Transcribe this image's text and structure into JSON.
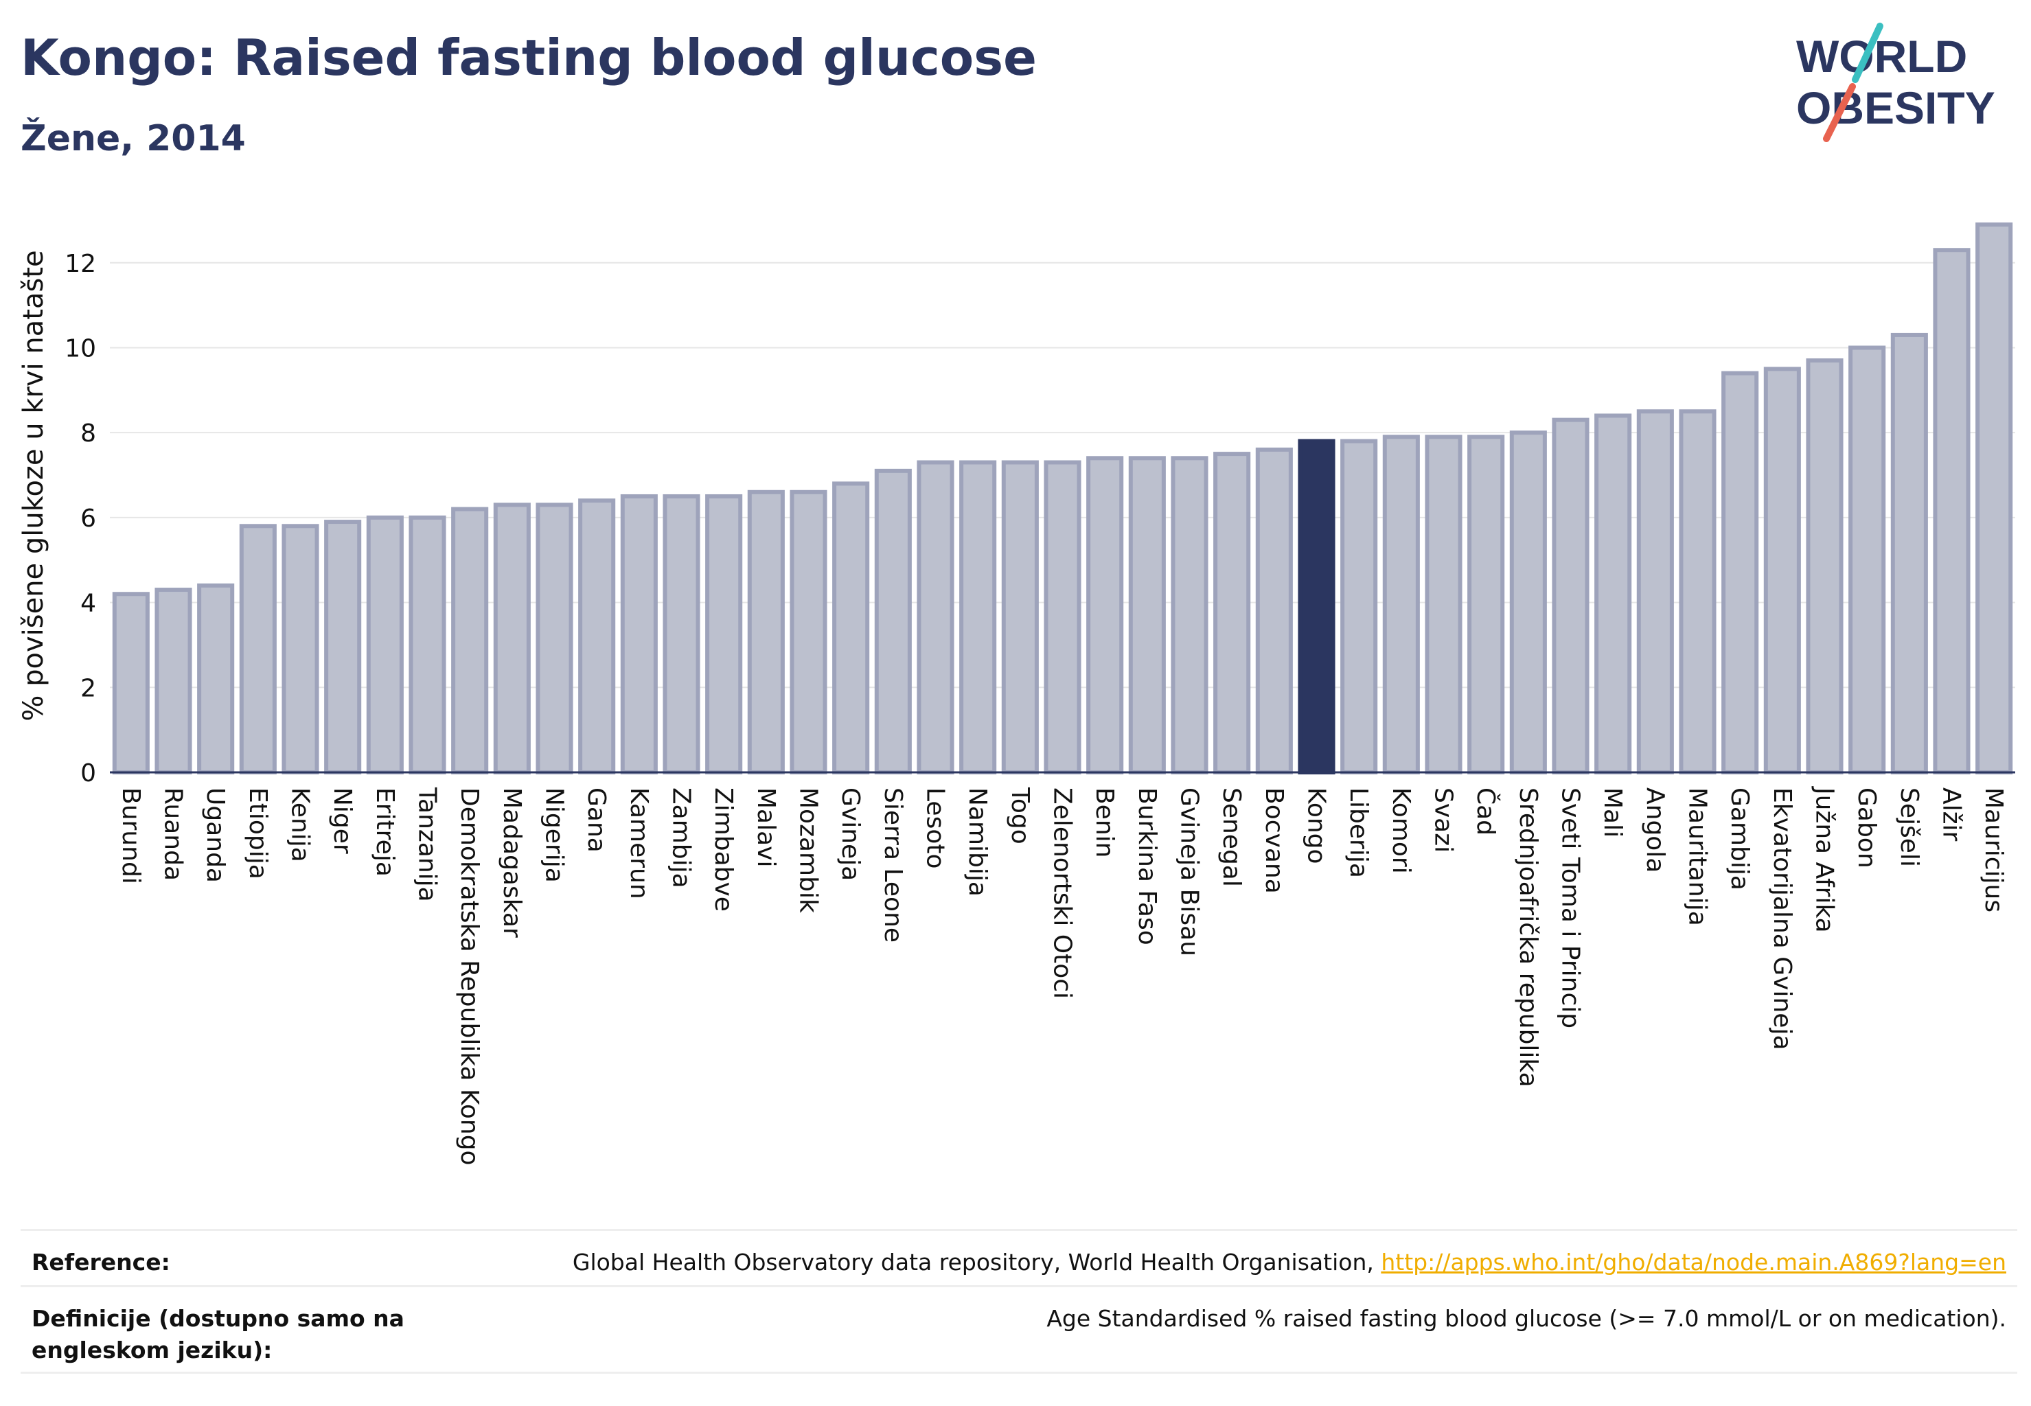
{
  "header": {
    "title": "Kongo: Raised fasting blood glucose",
    "subtitle": "Žene, 2014"
  },
  "logo": {
    "line1": "WORLD",
    "line2": "OBESITY",
    "colors": {
      "text": "#2b3660",
      "slash_teal": "#3bbfc1",
      "slash_red": "#e8624f"
    }
  },
  "chart_data": {
    "type": "bar",
    "ylabel": "% povišene glukoze u krvi natašte",
    "ylim": [
      0,
      13.5
    ],
    "yticks": [
      0,
      2,
      4,
      6,
      8,
      10,
      12
    ],
    "grid": true,
    "highlight": "Kongo",
    "colors": {
      "bar": "#bcc0ce",
      "bar_edge": "#9ea3bb",
      "highlight": "#2b3660"
    },
    "categories": [
      "Burundi",
      "Ruanda",
      "Uganda",
      "Etiopija",
      "Kenija",
      "Niger",
      "Eritreja",
      "Tanzanija",
      "Demokratska Republika Kongo",
      "Madagaskar",
      "Nigerija",
      "Gana",
      "Kamerun",
      "Zambija",
      "Zimbabve",
      "Malavi",
      "Mozambik",
      "Gvineja",
      "Sierra Leone",
      "Lesoto",
      "Namibija",
      "Togo",
      "Zelenortski Otoci",
      "Benin",
      "Burkina Faso",
      "Gvineja Bisau",
      "Senegal",
      "Bocvana",
      "Kongo",
      "Liberija",
      "Komori",
      "Svazi",
      "Čad",
      "Srednjoafrička republika",
      "Sveti Toma i Princip",
      "Mali",
      "Angola",
      "Mauritanija",
      "Gambija",
      "Ekvatorijalna Gvineja",
      "Južna Afrika",
      "Gabon",
      "Sejšeli",
      "Alžir",
      "Mauricijus"
    ],
    "values": [
      4.2,
      4.3,
      4.4,
      5.8,
      5.8,
      5.9,
      6.0,
      6.0,
      6.2,
      6.3,
      6.3,
      6.4,
      6.5,
      6.5,
      6.5,
      6.6,
      6.6,
      6.8,
      7.1,
      7.3,
      7.3,
      7.3,
      7.3,
      7.4,
      7.4,
      7.4,
      7.5,
      7.6,
      7.8,
      7.8,
      7.9,
      7.9,
      7.9,
      8.0,
      8.3,
      8.4,
      8.5,
      8.5,
      9.4,
      9.5,
      9.7,
      10.0,
      10.3,
      12.3,
      12.9
    ]
  },
  "footer": {
    "reference_label": "Reference:",
    "reference_text": "Global Health Observatory data repository, World Health Organisation, ",
    "reference_link": "http://apps.who.int/gho/data/node.main.A869?lang=en",
    "definition_label": "Definicije (dostupno samo na engleskom jeziku):",
    "definition_text": "Age Standardised % raised fasting blood glucose (>= 7.0 mmol/L or on medication)."
  }
}
